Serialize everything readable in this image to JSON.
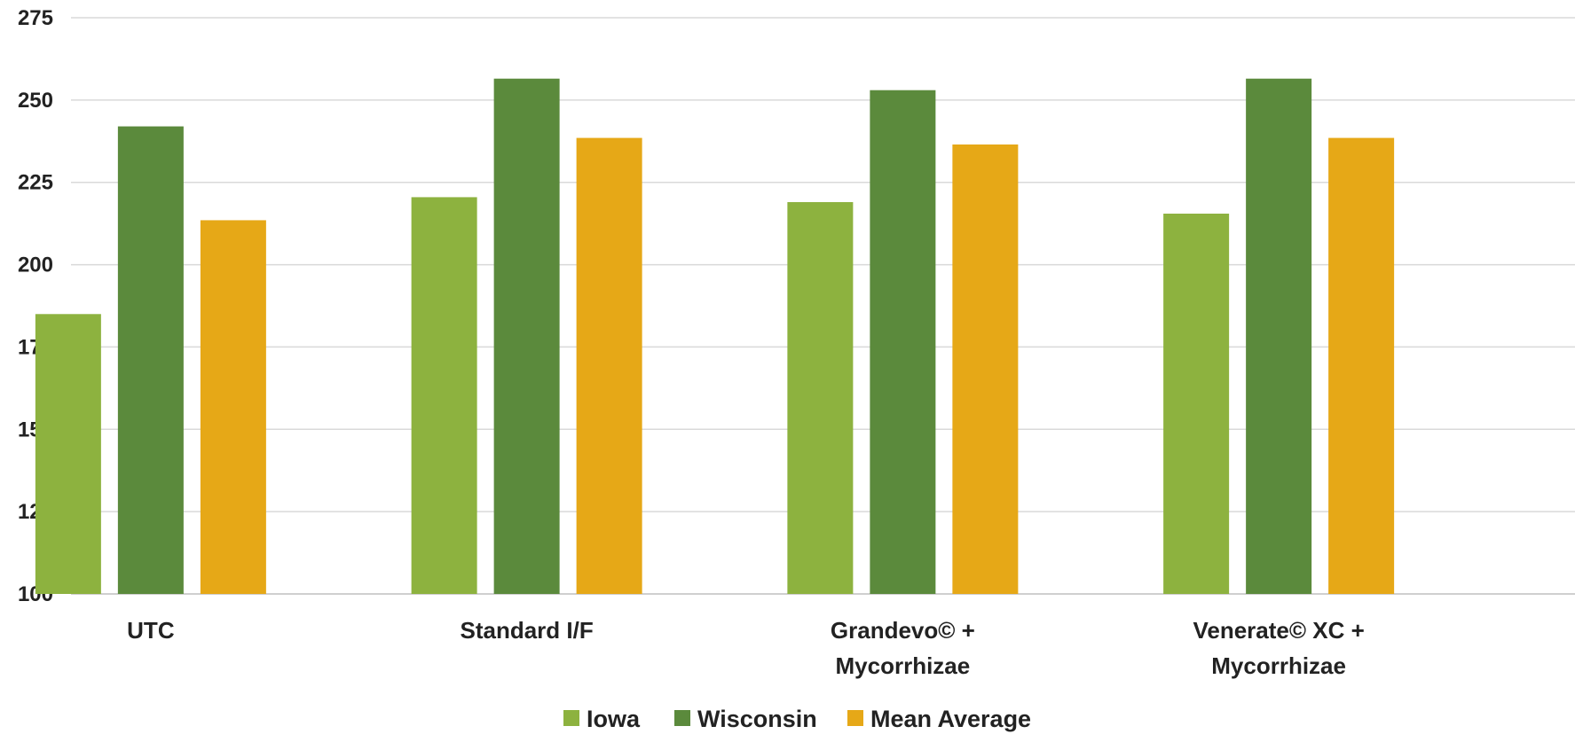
{
  "chart_data": {
    "type": "bar",
    "categories": [
      "UTC",
      "Standard I/F",
      "Grandevo© + Mycorrhizae",
      "Venerate© XC + Mycorrhizae"
    ],
    "category_lines": [
      [
        "UTC"
      ],
      [
        "Standard I/F"
      ],
      [
        "Grandevo© +",
        "Mycorrhizae"
      ],
      [
        "Venerate© XC +",
        "Mycorrhizae"
      ]
    ],
    "series": [
      {
        "name": "Iowa",
        "color": "#8db23f",
        "values": [
          185,
          220.5,
          219,
          215.5
        ]
      },
      {
        "name": "Wisconsin",
        "color": "#5b8a3c",
        "values": [
          242,
          256.5,
          253,
          256.5
        ]
      },
      {
        "name": "Mean Average",
        "color": "#e6a817",
        "values": [
          213.5,
          238.5,
          236.5,
          238.5
        ]
      }
    ],
    "ylim": [
      100,
      275
    ],
    "yticks": [
      100,
      125,
      150,
      175,
      200,
      225,
      250,
      275
    ],
    "grid": true,
    "legend_position": "bottom",
    "title": "",
    "xlabel": "",
    "ylabel": ""
  }
}
